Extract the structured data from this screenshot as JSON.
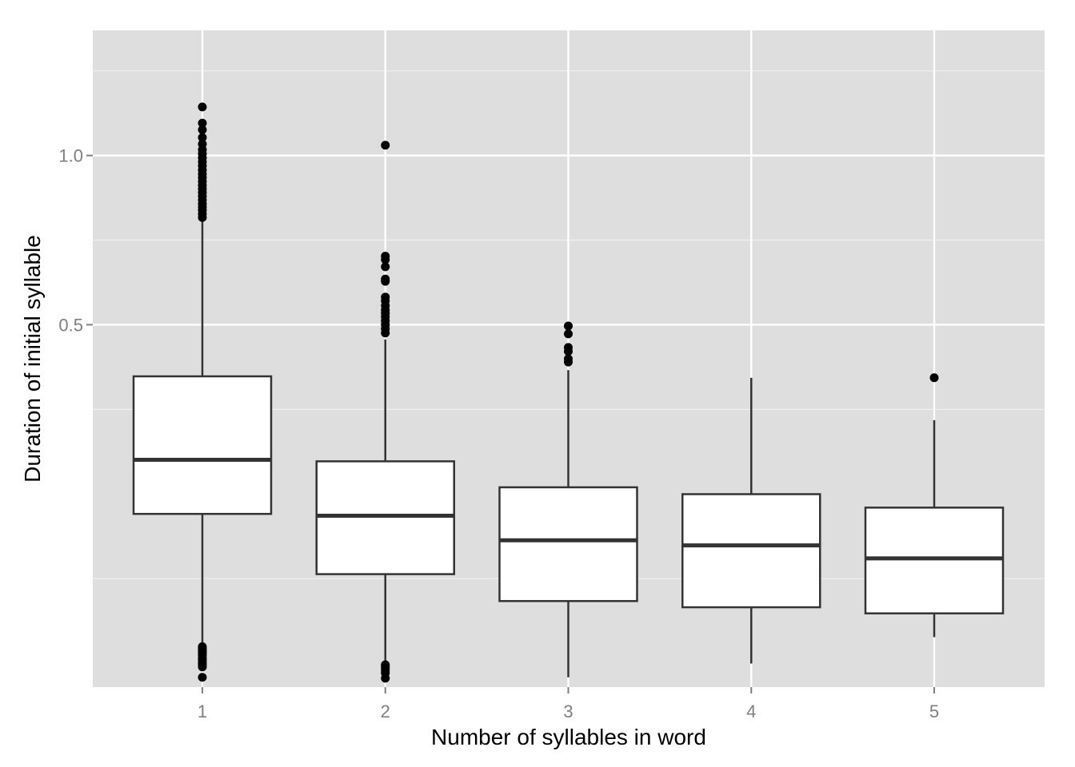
{
  "chart_data": {
    "type": "boxplot",
    "xlabel": "Number of syllables in word",
    "ylabel": "Duration of initial syllable",
    "y_scale": "sqrt",
    "y_ticks": [
      {
        "value": 0.5,
        "label": "0.5"
      },
      {
        "value": 1.0,
        "label": "1.0"
      }
    ],
    "ylim": [
      0.0064,
      1.48
    ],
    "grid": true,
    "colors": {
      "panel": "#dedede",
      "grid": "#ffffff",
      "box_fill": "#ffffff",
      "box_line": "#333333",
      "outlier": "#000000"
    },
    "categories": [
      "1",
      "2",
      "3",
      "4",
      "5"
    ],
    "boxes": [
      {
        "category": "1",
        "whisker_low": 0.0182,
        "q1": 0.1442,
        "median": 0.224,
        "q3": 0.3817,
        "whisker_high": 0.788,
        "outliers_high": [
          1.175,
          1.115,
          1.091,
          1.063,
          1.04,
          1.02,
          1.006,
          0.992,
          0.978,
          0.965,
          0.95,
          0.937,
          0.925,
          0.912,
          0.9,
          0.888,
          0.876,
          0.864,
          0.852,
          0.84,
          0.83,
          0.82,
          0.808,
          0.797
        ],
        "outliers_low": [
          0.0225,
          0.0221,
          0.0216,
          0.0212,
          0.0207,
          0.0203,
          0.0198,
          0.0193,
          0.0189,
          0.0184,
          0.0171,
          0.0165,
          0.016,
          0.0149,
          0.0141,
          0.0132,
          0.0094
        ]
      },
      {
        "category": "2",
        "whisker_low": 0.0115,
        "q1": 0.0759,
        "median": 0.1418,
        "q3": 0.2216,
        "whisker_high": 0.4646,
        "outliers_high": [
          1.036,
          0.682,
          0.672,
          0.652,
          0.618,
          0.612,
          0.57,
          0.56,
          0.548,
          0.537,
          0.529,
          0.52,
          0.51,
          0.5,
          0.49,
          0.48
        ],
        "outliers_low": [
          0.0141,
          0.0134,
          0.0127,
          0.0118,
          0.0109,
          0.0091
        ]
      },
      {
        "category": "3",
        "whisker_low": 0.0094,
        "q1": 0.0524,
        "median": 0.1116,
        "q3": 0.1813,
        "whisker_high": 0.395,
        "outliers_high": [
          0.497,
          0.478,
          0.446,
          0.437,
          0.42,
          0.413
        ]
      },
      {
        "category": "4",
        "whisker_low": 0.0146,
        "q1": 0.0476,
        "median": 0.1058,
        "q3": 0.1713,
        "whisker_high": 0.3786,
        "outliers_high": []
      },
      {
        "category": "5",
        "whisker_low": 0.0277,
        "q1": 0.0431,
        "median": 0.0917,
        "q3": 0.1526,
        "whisker_high": 0.2937,
        "outliers_high": [
          0.3787
        ]
      }
    ]
  }
}
